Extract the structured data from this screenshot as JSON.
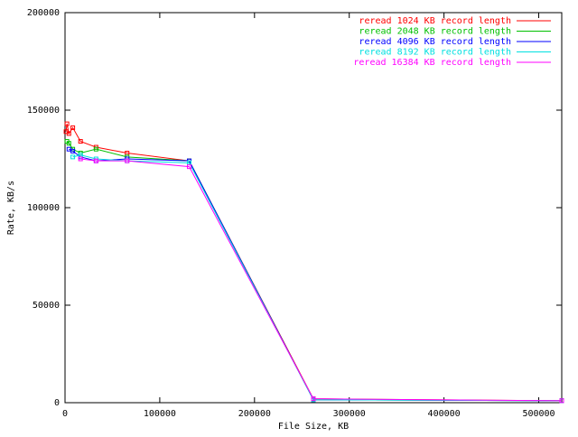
{
  "chart_data": {
    "type": "line",
    "xlabel": "File Size, KB",
    "ylabel": "Rate, KB/s",
    "x": [
      1024,
      2048,
      4096,
      8192,
      16384,
      32768,
      65536,
      131072,
      262144,
      524288
    ],
    "series": [
      {
        "name": "reread 1024 KB record length",
        "color": "#ff0000",
        "values": [
          139000,
          143000,
          138000,
          141000,
          134000,
          131000,
          128000,
          124000,
          2000,
          1000
        ]
      },
      {
        "name": "reread 2048 KB record length",
        "color": "#00c000",
        "values": [
          null,
          134000,
          133000,
          130000,
          128000,
          130000,
          126000,
          124000,
          1500,
          1000
        ]
      },
      {
        "name": "reread 4096 KB record length",
        "color": "#0000ff",
        "values": [
          null,
          null,
          130000,
          129000,
          126000,
          124000,
          125000,
          124000,
          1500,
          1000
        ]
      },
      {
        "name": "reread 8192 KB record length",
        "color": "#00e0e0",
        "values": [
          null,
          null,
          null,
          126000,
          127000,
          125000,
          124000,
          123000,
          1500,
          1000
        ]
      },
      {
        "name": "reread 16384 KB record length",
        "color": "#ff00ff",
        "values": [
          null,
          null,
          null,
          null,
          125000,
          124000,
          124000,
          121000,
          2000,
          1000
        ]
      }
    ],
    "xlim": [
      0,
      524288
    ],
    "xticks": [
      0,
      100000,
      200000,
      300000,
      400000,
      500000
    ],
    "ylim": [
      0,
      200000
    ],
    "yticks": [
      0,
      50000,
      100000,
      150000,
      200000
    ],
    "grid": false,
    "legend": "top-right"
  }
}
